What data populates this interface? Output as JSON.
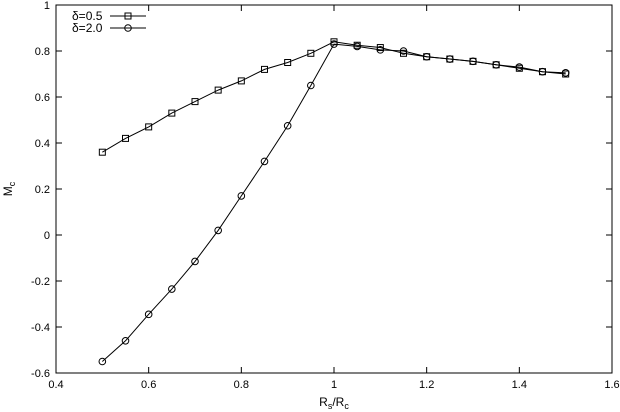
{
  "chart_data": {
    "type": "line",
    "xlabel": "R_s/R_c",
    "ylabel": "M_c",
    "xlim": [
      0.4,
      1.6
    ],
    "ylim": [
      -0.6,
      1.0
    ],
    "xticks": [
      "0.4",
      "0.6",
      "0.8",
      "1",
      "1.2",
      "1.4",
      "1.6"
    ],
    "yticks": [
      "-0.6",
      "-0.4",
      "-0.2",
      "0",
      "0.2",
      "0.4",
      "0.6",
      "0.8",
      "1"
    ],
    "grid": false,
    "legend_position": "top-left",
    "series": [
      {
        "name": "δ=0.5",
        "marker": "square",
        "x": [
          0.5,
          0.55,
          0.6,
          0.65,
          0.7,
          0.75,
          0.8,
          0.85,
          0.9,
          0.95,
          1.0,
          1.05,
          1.1,
          1.15,
          1.2,
          1.25,
          1.3,
          1.35,
          1.4,
          1.45,
          1.5
        ],
        "y": [
          0.36,
          0.42,
          0.47,
          0.53,
          0.58,
          0.63,
          0.67,
          0.72,
          0.75,
          0.79,
          0.84,
          0.825,
          0.815,
          0.79,
          0.775,
          0.765,
          0.755,
          0.74,
          0.725,
          0.71,
          0.7
        ]
      },
      {
        "name": "δ=2.0",
        "marker": "circle",
        "x": [
          0.5,
          0.55,
          0.6,
          0.65,
          0.7,
          0.75,
          0.8,
          0.85,
          0.9,
          0.95,
          1.0,
          1.05,
          1.1,
          1.15,
          1.2,
          1.25,
          1.3,
          1.35,
          1.4,
          1.45,
          1.5
        ],
        "y": [
          -0.55,
          -0.46,
          -0.345,
          -0.235,
          -0.115,
          0.02,
          0.17,
          0.32,
          0.475,
          0.65,
          0.83,
          0.82,
          0.805,
          0.8,
          0.775,
          0.765,
          0.755,
          0.74,
          0.73,
          0.71,
          0.705
        ]
      }
    ]
  }
}
